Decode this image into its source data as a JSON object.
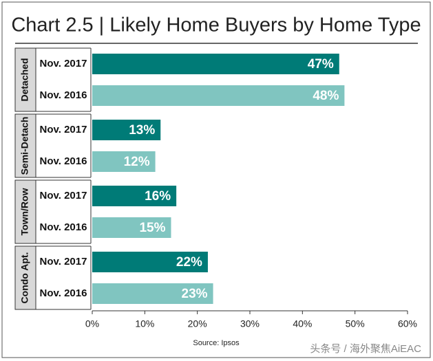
{
  "chart_data": {
    "type": "hbar",
    "title": "Chart 2.5 | Likely Home Buyers by Home Type",
    "source": "Source: Ipsos",
    "watermark": "头条号 / 海外聚焦AiEAC",
    "categories": [
      "Detached",
      "Semi-Detach",
      "Town/Row",
      "Condo Apt."
    ],
    "series": [
      {
        "name": "Nov. 2017",
        "color": "#007b77",
        "values": [
          47,
          13,
          16,
          22
        ],
        "value_labels": [
          "47%",
          "13%",
          "16%",
          "22%"
        ]
      },
      {
        "name": "Nov. 2016",
        "color": "#80c5c0",
        "values": [
          48,
          12,
          15,
          23
        ],
        "value_labels": [
          "48%",
          "12%",
          "15%",
          "23%"
        ]
      }
    ],
    "xlim": [
      0,
      60
    ],
    "xticks": [
      {
        "value": 0,
        "label": "0%"
      },
      {
        "value": 10,
        "label": "10%"
      },
      {
        "value": 20,
        "label": "20%"
      },
      {
        "value": 30,
        "label": "30%"
      },
      {
        "value": 40,
        "label": "40%"
      },
      {
        "value": 50,
        "label": "50%"
      },
      {
        "value": 60,
        "label": "60%"
      }
    ],
    "grid": false
  }
}
